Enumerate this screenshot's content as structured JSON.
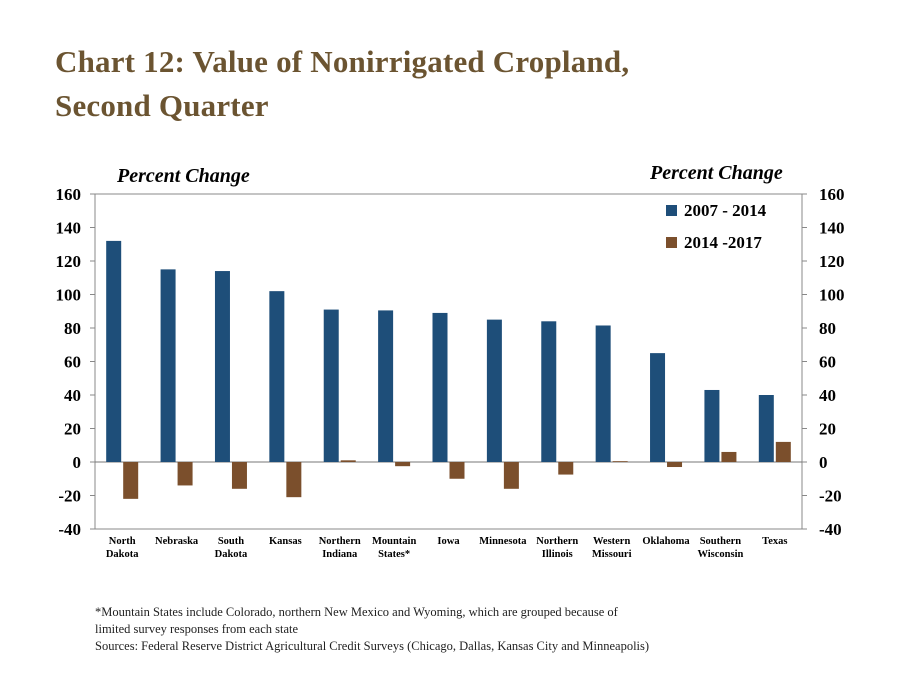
{
  "title_line1": "Chart 12: Value of Nonirrigated Cropland,",
  "title_line2": "Second Quarter",
  "notes": [
    "*Mountain States include Colorado, northern New Mexico and Wyoming, which are grouped because of",
    "limited survey responses from each state",
    "Sources:  Federal Reserve District Agricultural Credit Surveys (Chicago, Dallas, Kansas City and Minneapolis)"
  ],
  "chart_data": {
    "type": "bar",
    "ylabel_left": "Percent Change",
    "ylabel_right": "Percent Change",
    "ylim": [
      -40,
      160
    ],
    "yticks": [
      160,
      140,
      120,
      100,
      80,
      60,
      40,
      20,
      0,
      -20,
      -40
    ],
    "categories": [
      [
        "North",
        "Dakota"
      ],
      [
        "Nebraska"
      ],
      [
        "South",
        "Dakota"
      ],
      [
        "Kansas"
      ],
      [
        "Northern",
        "Indiana"
      ],
      [
        "Mountain",
        "States*"
      ],
      [
        "Iowa"
      ],
      [
        "Minnesota"
      ],
      [
        "Northern",
        "Illinois"
      ],
      [
        "Western",
        "Missouri"
      ],
      [
        "Oklahoma"
      ],
      [
        "Southern",
        "Wisconsin"
      ],
      [
        "Texas"
      ]
    ],
    "series": [
      {
        "name": "2007 - 2014",
        "color": "#1e4e79",
        "values": [
          132,
          115,
          114,
          102,
          91,
          90.5,
          89,
          85,
          84,
          81.5,
          65,
          43,
          40
        ]
      },
      {
        "name": "2014 -2017",
        "color": "#7b4f2c",
        "values": [
          -22,
          -14,
          -16,
          -21,
          1,
          -2.5,
          -10,
          -16,
          -7.5,
          0.5,
          -3,
          6,
          12
        ]
      }
    ],
    "legend_position": "top-right",
    "grid": false
  }
}
